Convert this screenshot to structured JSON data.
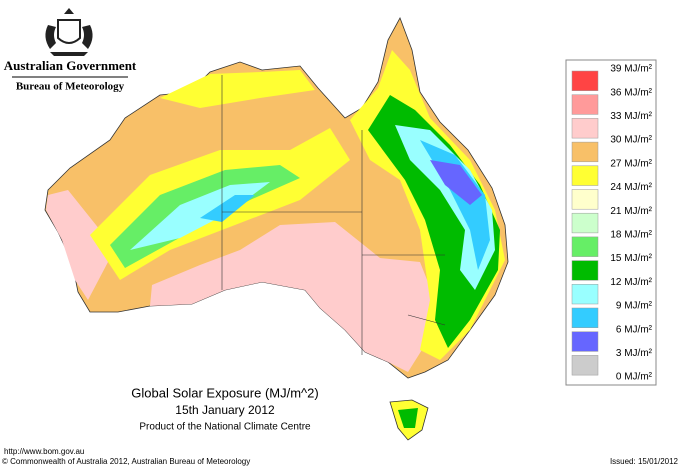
{
  "header": {
    "government": "Australian Government",
    "agency": "Bureau of Meteorology"
  },
  "map": {
    "title": "Global Solar Exposure (MJ/m^2)",
    "date": "15th January 2012",
    "product": "Product of the National Climate Centre"
  },
  "legend": {
    "labels": [
      "39 MJ/m²",
      "36 MJ/m²",
      "33 MJ/m²",
      "30 MJ/m²",
      "27 MJ/m²",
      "24 MJ/m²",
      "21 MJ/m²",
      "18 MJ/m²",
      "15 MJ/m²",
      "12 MJ/m²",
      "9 MJ/m²",
      "6 MJ/m²",
      "3 MJ/m²",
      "0 MJ/m²"
    ],
    "colors": [
      "#ff4444",
      "#ff9a9a",
      "#ffcccc",
      "#f8c068",
      "#ffff33",
      "#ffffcc",
      "#ccffcc",
      "#66ee66",
      "#00bb00",
      "#99ffff",
      "#33ccff",
      "#6666ff",
      "#cccccc"
    ]
  },
  "footer": {
    "url": "http://www.bom.gov.au",
    "copyright": "© Commonwealth of Australia 2012, Australian Bureau of Meteorology",
    "issued": "Issued: 15/01/2012"
  }
}
